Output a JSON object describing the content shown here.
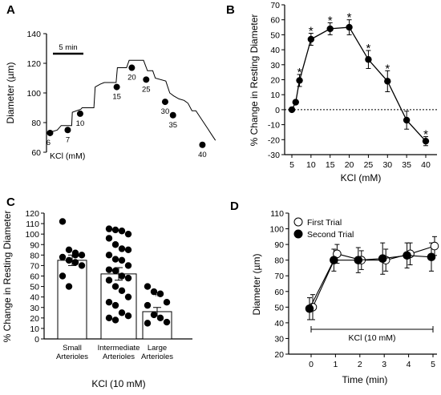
{
  "panels": [
    {
      "letter": "A"
    },
    {
      "letter": "B"
    },
    {
      "letter": "C"
    },
    {
      "letter": "D"
    }
  ],
  "chart_data": [
    {
      "panel": "A",
      "type": "line",
      "ylabel": "Diameter (µm)",
      "ylim": [
        60,
        140
      ],
      "yticks": [
        "60",
        "80",
        "100",
        "120",
        "140"
      ],
      "scale_bar_label": "5 min",
      "x_annotation": "KCl (mM)",
      "trace_min": [
        0,
        0.7,
        1,
        1.4,
        1.8,
        1.85,
        2.5,
        2.6,
        3.5,
        3.6,
        4.0,
        4.3,
        5.2,
        5.3,
        6.0,
        6.2,
        6.5,
        7.0,
        7.3,
        7.6,
        8.0,
        8.2,
        9.0,
        9.3,
        9.6,
        10.0,
        10.4,
        10.7,
        11.0,
        11.3,
        11.6,
        11.9,
        12.2,
        12.5,
        12.8
      ],
      "trace_um": [
        73,
        75,
        78,
        78,
        78,
        87,
        89,
        90,
        90,
        104,
        106,
        107,
        107,
        117,
        117,
        122,
        122,
        122,
        122,
        115,
        115,
        110,
        108,
        100,
        98,
        96,
        95,
        93,
        88,
        88,
        84,
        80,
        76,
        72,
        68
      ],
      "markers": [
        {
          "label": "6",
          "t": 0.15,
          "d": 73
        },
        {
          "label": "7",
          "t": 1.5,
          "d": 75
        },
        {
          "label": "10",
          "t": 2.45,
          "d": 86
        },
        {
          "label": "15",
          "t": 5.25,
          "d": 104
        },
        {
          "label": "20",
          "t": 6.4,
          "d": 117
        },
        {
          "label": "25",
          "t": 7.5,
          "d": 109
        },
        {
          "label": "30",
          "t": 8.95,
          "d": 94
        },
        {
          "label": "35",
          "t": 9.55,
          "d": 85
        },
        {
          "label": "40",
          "t": 11.8,
          "d": 65
        }
      ]
    },
    {
      "panel": "B",
      "type": "line",
      "xlabel": "KCl (mM)",
      "ylabel": "% Change in Resting Diameter",
      "ylim": [
        -30,
        70
      ],
      "yticks": [
        "-30",
        "-20",
        "-10",
        "0",
        "10",
        "20",
        "30",
        "40",
        "50",
        "60",
        "70"
      ],
      "xticks": [
        "5",
        "10",
        "15",
        "20",
        "25",
        "30",
        "35",
        "40"
      ],
      "x": [
        5,
        6,
        7,
        10,
        15,
        20,
        25,
        30,
        35,
        40
      ],
      "y": [
        0,
        5,
        19.5,
        47,
        54,
        55,
        33.5,
        19,
        -7,
        -21
      ],
      "err": [
        0,
        1,
        4,
        4,
        4,
        5,
        6,
        7,
        6,
        3
      ],
      "significant": [
        false,
        false,
        true,
        true,
        true,
        true,
        true,
        true,
        false,
        true
      ],
      "star_text": "*",
      "reference_line": 0
    },
    {
      "panel": "C",
      "type": "bar",
      "xlabel": "KCl (10 mM)",
      "ylabel": "% Change in Resting Diameter",
      "ylim": [
        0,
        120
      ],
      "yticks": [
        "0",
        "10",
        "20",
        "30",
        "40",
        "50",
        "60",
        "70",
        "80",
        "90",
        "100",
        "110",
        "120"
      ],
      "categories": [
        [
          "Small",
          "Arterioles"
        ],
        [
          "Intermediate",
          "Arterioles"
        ],
        [
          "Large",
          "Arterioles"
        ]
      ],
      "values": [
        75,
        62,
        26
      ],
      "err": [
        5,
        6,
        4
      ],
      "annotation": {
        "category_index": 2,
        "text": "#"
      },
      "points": [
        [
          112,
          85,
          82,
          80,
          78,
          75,
          73,
          70,
          60,
          50,
          80
        ],
        [
          105,
          104,
          103,
          100,
          96,
          90,
          86,
          85,
          80,
          76,
          75,
          70,
          66,
          65,
          60,
          58,
          56,
          50,
          46,
          40,
          35,
          32,
          25,
          22,
          20,
          18
        ],
        [
          50,
          45,
          43,
          35,
          32,
          23,
          20,
          16,
          15
        ]
      ]
    },
    {
      "panel": "D",
      "type": "line",
      "xlabel": "Time (min)",
      "ylabel": "Diameter (µm)",
      "ylim": [
        20,
        110
      ],
      "yticks": [
        "20",
        "30",
        "40",
        "50",
        "60",
        "70",
        "80",
        "90",
        "100",
        "110"
      ],
      "xticks": [
        "0",
        "1",
        "2",
        "3",
        "4",
        "5"
      ],
      "x": [
        0,
        1,
        2,
        3,
        4,
        5
      ],
      "series": [
        {
          "name": "First Trial",
          "marker": "open",
          "values": [
            50,
            84,
            80,
            80,
            84,
            89
          ],
          "err": [
            8,
            6,
            6,
            7,
            7,
            6
          ]
        },
        {
          "name": "Second Trial",
          "marker": "filled",
          "values": [
            49,
            80,
            80,
            81,
            83,
            82
          ],
          "err": [
            7,
            7,
            8,
            10,
            8,
            9
          ]
        }
      ],
      "bracket_label": "KCl (10 mM)",
      "legend_position": "top"
    }
  ]
}
